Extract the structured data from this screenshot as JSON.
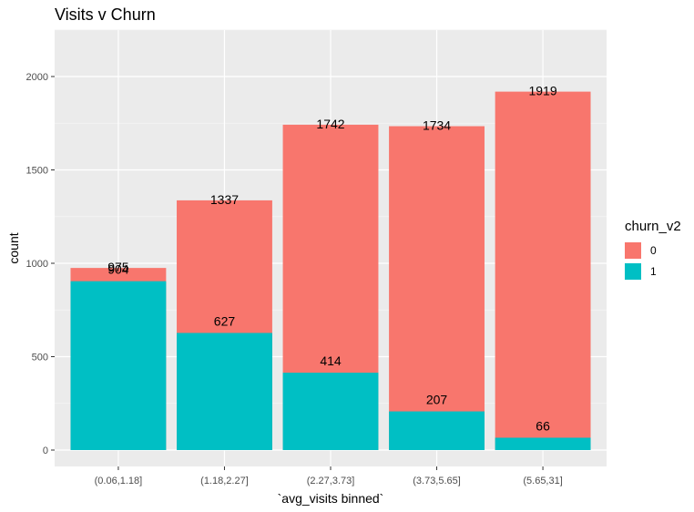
{
  "chart_data": {
    "type": "bar",
    "title": "Visits v Churn",
    "xlabel": "`avg_visits binned`",
    "ylabel": "count",
    "categories": [
      "(0.06,1.18]",
      "(1.18,2.27]",
      "(2.27,3.73]",
      "(3.73,5.65]",
      "(5.65,31]"
    ],
    "series": [
      {
        "name": "1",
        "values": [
          904,
          627,
          414,
          207,
          66
        ],
        "color": "#00BFC4"
      },
      {
        "name": "0",
        "values": [
          975,
          1337,
          1742,
          1734,
          1919
        ],
        "color": "#F8766D"
      }
    ],
    "stacked": true,
    "ylim": [
      0,
      2200
    ],
    "yticks": [
      0,
      500,
      1000,
      1500,
      2000
    ],
    "grid": true,
    "legend": {
      "title": "churn_v2",
      "placement": "right",
      "items": [
        {
          "label": "0",
          "color": "#F8766D"
        },
        {
          "label": "1",
          "color": "#00BFC4"
        }
      ]
    }
  }
}
